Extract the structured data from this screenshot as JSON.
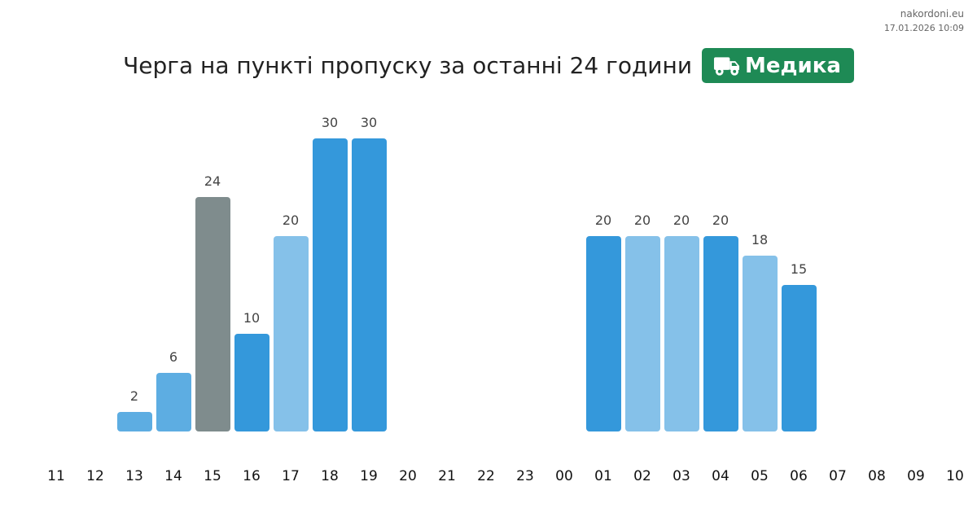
{
  "meta": {
    "site": "nakordoni.eu",
    "timestamp": "17.01.2026 10:09"
  },
  "title": {
    "text": "Черга на пункті пропуску за останні 24 години",
    "badge_label": "Медика",
    "badge_icon": "truck-icon",
    "badge_color": "#1e8a55"
  },
  "chart_data": {
    "type": "bar",
    "title": "Черга на пункті пропуску за останні 24 години",
    "categories": [
      "11",
      "12",
      "13",
      "14",
      "15",
      "16",
      "17",
      "18",
      "19",
      "20",
      "21",
      "22",
      "23",
      "00",
      "01",
      "02",
      "03",
      "04",
      "05",
      "06",
      "07",
      "08",
      "09",
      "10"
    ],
    "values": [
      null,
      null,
      2,
      6,
      24,
      10,
      20,
      30,
      30,
      null,
      null,
      null,
      null,
      null,
      20,
      20,
      20,
      20,
      18,
      15,
      null,
      null,
      null,
      null
    ],
    "bar_colors": [
      "",
      "",
      "#5dade2",
      "#5dade2",
      "#7f8c8d",
      "#3498db",
      "#85c1e9",
      "#3498db",
      "#3498db",
      "",
      "",
      "",
      "",
      "",
      "#3498db",
      "#85c1e9",
      "#85c1e9",
      "#3498db",
      "#85c1e9",
      "#3498db",
      "",
      "",
      "",
      ""
    ],
    "ylim": [
      0,
      30
    ],
    "grid": false,
    "xlabel": "",
    "ylabel": ""
  }
}
